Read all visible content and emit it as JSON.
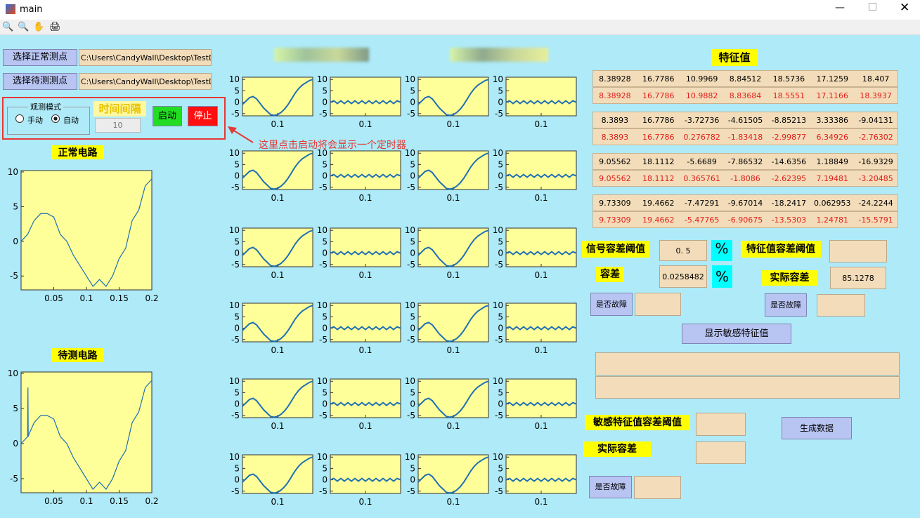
{
  "window": {
    "title": "main"
  },
  "left_panel": {
    "select_normal": "选择正常测点",
    "select_test": "选择待测测点",
    "path_normal": "C:\\Users\\CandyWall\\Desktop\\TestData\\",
    "path_test": "C:\\Users\\CandyWall\\Desktop\\TestData\\",
    "mode_group": "观测模式",
    "manual": "手动",
    "auto": "自动",
    "interval_label": "时间间隔",
    "interval_value": "10",
    "start": "启动",
    "stop": "停止",
    "annotation": "这里点击启动将会显示一个定时器"
  },
  "normal_plot": {
    "title": "正常电路",
    "xlim": [
      0,
      0.2
    ],
    "ylim": [
      -7,
      10.2
    ],
    "xticks": [
      0.05,
      0.1,
      0.15,
      0.2
    ],
    "yticks": [
      10,
      5,
      0,
      -5
    ],
    "x": [
      0,
      0.01,
      0.02,
      0.03,
      0.04,
      0.05,
      0.06,
      0.07,
      0.08,
      0.09,
      0.1,
      0.11,
      0.12,
      0.13,
      0.14,
      0.15,
      0.16,
      0.17,
      0.18,
      0.19,
      0.2
    ],
    "values": [
      0,
      1,
      3,
      4,
      4,
      3.5,
      1,
      0,
      -2,
      -3.5,
      -5,
      -6.5,
      -5.5,
      -6.5,
      -5,
      -2.5,
      -1,
      3,
      4.5,
      8,
      9
    ]
  },
  "test_plot": {
    "title": "待测电路",
    "xlim": [
      0,
      0.2
    ],
    "ylim": [
      -7,
      10.2
    ],
    "xticks": [
      0.05,
      0.1,
      0.15,
      0.2
    ],
    "yticks": [
      10,
      5,
      0,
      -5
    ],
    "x": [
      0,
      0.01,
      0.0105,
      0.011,
      0.0115,
      0.02,
      0.03,
      0.04,
      0.05,
      0.06,
      0.07,
      0.08,
      0.09,
      0.1,
      0.11,
      0.12,
      0.13,
      0.14,
      0.15,
      0.16,
      0.17,
      0.18,
      0.19,
      0.2
    ],
    "values": [
      0,
      1,
      8,
      1,
      1.2,
      3,
      4,
      4,
      3.5,
      1,
      0,
      -2,
      -3.5,
      -5,
      -6.5,
      -5.5,
      -6.5,
      -5,
      -2.5,
      -1,
      3,
      4.5,
      8,
      9
    ]
  },
  "small_axes": {
    "xlim": [
      0,
      0.2
    ],
    "ylim": [
      -6,
      11
    ],
    "xticks": [
      0.1
    ],
    "yticks": [
      10,
      5,
      0,
      -5
    ],
    "x": [
      0,
      0.01,
      0.02,
      0.03,
      0.04,
      0.05,
      0.06,
      0.07,
      0.08,
      0.09,
      0.1,
      0.11,
      0.12,
      0.13,
      0.14,
      0.15,
      0.16,
      0.17,
      0.18,
      0.19,
      0.2
    ],
    "response": [
      -1,
      0.5,
      2,
      2.5,
      1.5,
      -0.5,
      -2.5,
      -4,
      -5.5,
      -5.8,
      -5.5,
      -4.5,
      -3,
      -1,
      1.5,
      4,
      6,
      7.5,
      8.5,
      9.5,
      10
    ],
    "residual": [
      0,
      0.6,
      -0.6,
      0.6,
      -0.6,
      0.6,
      -0.6,
      0.6,
      -0.6,
      0.6,
      -0.6,
      0.6,
      -0.6,
      0.6,
      -0.6,
      0.6,
      -0.6,
      0.6,
      -0.6,
      0.6,
      0
    ]
  },
  "features": {
    "title": "特征值",
    "groups": [
      [
        [
          8.38928,
          16.7786,
          10.9969,
          8.84512,
          18.5736,
          17.1259,
          18.407
        ],
        [
          8.38928,
          16.7786,
          10.9882,
          8.83684,
          18.5551,
          17.1166,
          18.3937
        ]
      ],
      [
        [
          8.3893,
          16.7786,
          -3.72736,
          -4.61505,
          -8.85213,
          3.33386,
          -9.04131
        ],
        [
          8.3893,
          16.7786,
          0.276782,
          -1.83418,
          -2.99877,
          6.34926,
          -2.76302
        ]
      ],
      [
        [
          9.05562,
          18.1112,
          -5.6689,
          -7.86532,
          -14.6356,
          1.18849,
          -16.9329
        ],
        [
          9.05562,
          18.1112,
          0.365761,
          -1.8086,
          -2.62395,
          7.19481,
          -3.20485
        ]
      ],
      [
        [
          9.73309,
          19.4662,
          -7.47291,
          -9.67014,
          -18.2417,
          0.062953,
          -24.2244
        ],
        [
          9.73309,
          19.4662,
          -5.47765,
          -6.90675,
          -13.5303,
          1.24781,
          -15.5791
        ]
      ]
    ]
  },
  "controls": {
    "signal_tol_label": "信号容差阈值",
    "signal_tol_value": "0. 5",
    "percent": "%",
    "feature_tol_label": "特征值容差阈值",
    "tol_label": "容差",
    "tol_value": "0.0258482",
    "actual_tol_label": "实际容差",
    "actual_tol_value": "85.1278",
    "fault_button": "是否故障",
    "show_sensitive": "显示敏感特征值",
    "sensitive_tol_label": "敏感特征值容差阈值",
    "actual_tol_label2": "实际容差",
    "generate": "生成数据"
  }
}
